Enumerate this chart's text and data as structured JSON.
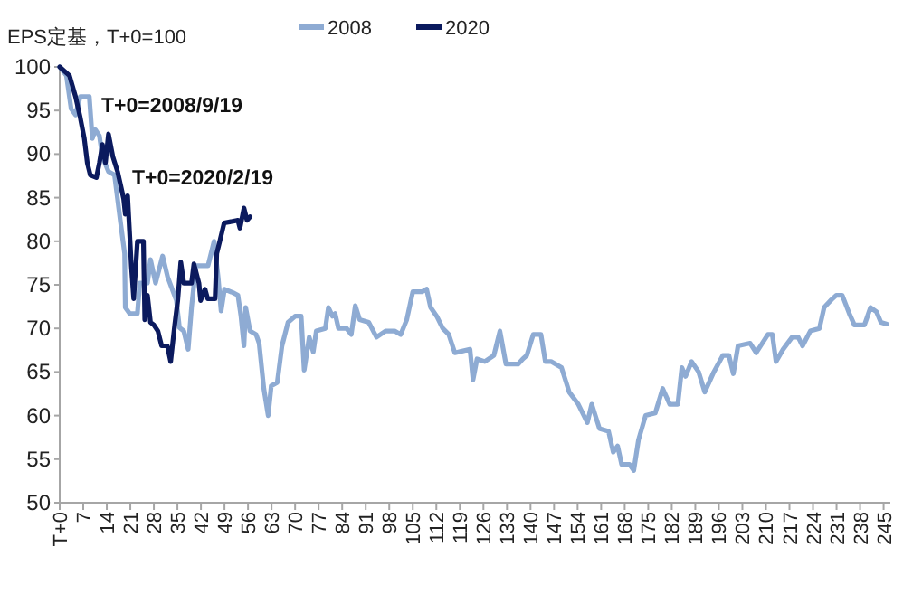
{
  "chart_data": {
    "type": "line",
    "ylabel": "EPS定基，T+0=100",
    "annotations": [
      "T+0=2008/9/19",
      "T+0=2020/2/19"
    ],
    "legend": "top",
    "grid": false,
    "marker": "none",
    "line_style": "solid",
    "xlim": [
      0,
      247
    ],
    "xticks": [
      {
        "value": 0,
        "label": "T+0"
      },
      7,
      14,
      21,
      28,
      35,
      42,
      49,
      56,
      63,
      70,
      77,
      84,
      91,
      98,
      105,
      112,
      119,
      126,
      133,
      140,
      147,
      154,
      161,
      168,
      175,
      182,
      189,
      196,
      203,
      210,
      217,
      224,
      231,
      238,
      245
    ],
    "ylim": [
      50,
      100
    ],
    "yticks": [
      50,
      55,
      60,
      65,
      70,
      75,
      80,
      85,
      90,
      95,
      100
    ],
    "series": [
      {
        "name": "2008",
        "color": "#8eabd3",
        "x": [
          0,
          2,
          3.4,
          4.7,
          6.1,
          8.8,
          9.7,
          10.6,
          11.8,
          12.7,
          14.5,
          16.3,
          18.1,
          19.3,
          19.5,
          20.8,
          23.1,
          23.8,
          26.1,
          27,
          28.5,
          30.6,
          32.1,
          34.7,
          35.6,
          36.9,
          38.2,
          39.2,
          40.5,
          44.1,
          45.9,
          47.1,
          48,
          49,
          51.5,
          53,
          53.9,
          54.8,
          55.3,
          56.6,
          58.4,
          59.3,
          60.7,
          62,
          62.9,
          64.7,
          66.1,
          67.9,
          70,
          71.8,
          72.7,
          74.2,
          75.4,
          76.3,
          79,
          79.9,
          81.1,
          81.9,
          82.9,
          85.3,
          86.7,
          87.9,
          89.2,
          91.9,
          94.2,
          96.9,
          99.6,
          101.4,
          103.2,
          105,
          107.7,
          109.1,
          110.3,
          112.1,
          113.9,
          115.7,
          117.5,
          122,
          122.9,
          124.1,
          126.4,
          129.1,
          130.9,
          132.7,
          136.3,
          137.7,
          138.9,
          140.8,
          143.1,
          144.4,
          146.1,
          149.2,
          151.5,
          154.2,
          156.9,
          158.2,
          160.5,
          163.2,
          164.6,
          165.9,
          167.1,
          169.4,
          170.7,
          172.1,
          174.2,
          177.1,
          179.3,
          181.4,
          183.8,
          185,
          186.1,
          187.9,
          190,
          191.8,
          194.5,
          197.2,
          199,
          200.3,
          201.7,
          205.3,
          207.1,
          210.6,
          211.9,
          213,
          215.1,
          217.8,
          219.6,
          220.9,
          223.2,
          225.9,
          227.3,
          229.5,
          230.9,
          232.7,
          234.8,
          236.3,
          239.3,
          241.1,
          242.9,
          244.2,
          246
        ],
        "values": [
          100,
          99,
          95.2,
          94.5,
          96.6,
          96.6,
          91.8,
          92.8,
          92.1,
          89.7,
          88,
          87.6,
          82.1,
          78.6,
          72.4,
          71.7,
          71.7,
          75.2,
          75.2,
          77.9,
          75.2,
          78.3,
          75.9,
          73.2,
          70.1,
          69.7,
          67.6,
          72.4,
          77.2,
          77.2,
          80,
          75.9,
          72,
          74.5,
          74.1,
          73.8,
          71.4,
          68,
          72.4,
          69.7,
          69.3,
          68.3,
          63.1,
          60,
          63.4,
          63.8,
          68,
          70.7,
          71.4,
          71.4,
          65.2,
          69,
          67.3,
          69.7,
          70,
          72.4,
          71.4,
          71.7,
          70,
          70,
          69.3,
          72.6,
          71,
          70.7,
          69,
          69.7,
          69.7,
          69.3,
          71,
          74.2,
          74.2,
          74.5,
          72.4,
          71.4,
          70,
          69.3,
          67.2,
          67.6,
          64.1,
          66.5,
          66.2,
          66.9,
          69.7,
          65.9,
          65.9,
          66.5,
          66.9,
          69.3,
          69.3,
          66.2,
          66.2,
          65.5,
          62.7,
          61.3,
          59.2,
          61.3,
          58.5,
          58.2,
          55.8,
          56.5,
          54.4,
          54.4,
          53.7,
          57.2,
          60,
          60.3,
          63.1,
          61.3,
          61.3,
          65.5,
          64.5,
          66.2,
          65,
          62.7,
          65,
          66.9,
          66.9,
          64.8,
          68,
          68.3,
          67.2,
          69.3,
          69.3,
          66.2,
          67.6,
          69,
          69,
          68,
          69.7,
          70,
          72.4,
          73.3,
          73.8,
          73.8,
          71.7,
          70.4,
          70.4,
          72.4,
          71.9,
          70.7,
          70.5
        ]
      },
      {
        "name": "2020",
        "color": "#0b1a5e",
        "x": [
          0,
          2.9,
          4.7,
          6.1,
          7.3,
          8.2,
          9.1,
          10.9,
          11.8,
          12.7,
          13.6,
          14.5,
          15.8,
          17.2,
          19,
          19.5,
          20.2,
          21.3,
          22,
          23.1,
          24.9,
          25.3,
          26.1,
          27,
          28,
          29.2,
          30.3,
          32,
          33,
          34.2,
          35.1,
          36,
          36.9,
          39.2,
          39.9,
          41.4,
          41.9,
          43.2,
          44,
          46.2,
          46.7,
          47.6,
          48.9,
          53,
          53.6,
          54.8,
          55.7,
          56.6
        ],
        "values": [
          100,
          99,
          96.6,
          94.2,
          91.8,
          89,
          87.6,
          87.3,
          89,
          91.1,
          89,
          92.3,
          89.7,
          88,
          84.9,
          83.1,
          85.2,
          77.2,
          73.4,
          80,
          80,
          71,
          73.8,
          70.7,
          70.4,
          69.7,
          68,
          68,
          66.2,
          70.4,
          73.2,
          77.6,
          75.2,
          75.2,
          77.4,
          75.2,
          73.2,
          74.5,
          73.4,
          73.4,
          78.6,
          80,
          82.1,
          82.4,
          81.5,
          83.8,
          82.4,
          82.8
        ]
      }
    ]
  }
}
